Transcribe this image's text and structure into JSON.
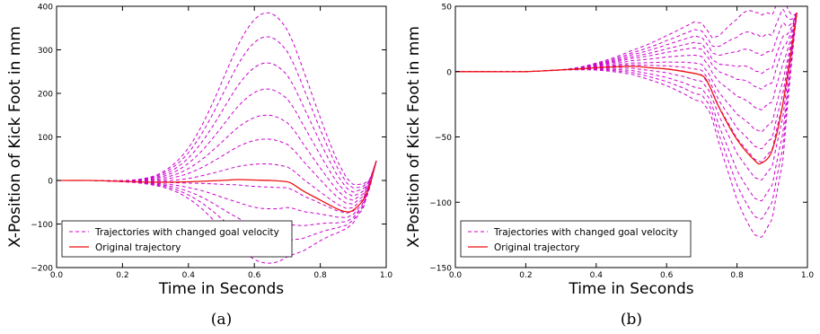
{
  "panels": [
    {
      "label": "(a)"
    },
    {
      "label": "(b)"
    }
  ],
  "colors": {
    "variants": "#cc00cc",
    "original": "#ee1111"
  },
  "chart_data": [
    {
      "type": "line",
      "xlabel": "Time in Seconds",
      "ylabel": "X-Position of Kick Foot in mm",
      "xlim": [
        0.0,
        1.0
      ],
      "ylim": [
        -200,
        400
      ],
      "xticks": [
        "0.0",
        "0.2",
        "0.4",
        "0.6",
        "0.8",
        "1.0"
      ],
      "yticks": [
        "400",
        "300",
        "200",
        "100",
        "0",
        "−100",
        "−200"
      ],
      "ytick_values": [
        400,
        300,
        200,
        100,
        0,
        -100,
        -200
      ],
      "legend": {
        "placement": "lower-left",
        "entries": [
          "Trajectories with changed goal velocity",
          "Original trajectory"
        ]
      },
      "original": {
        "x": [
          0.0,
          0.1,
          0.2,
          0.3,
          0.4,
          0.5,
          0.55,
          0.6,
          0.65,
          0.7,
          0.72,
          0.75,
          0.8,
          0.85,
          0.88,
          0.9,
          0.93,
          0.95,
          0.97
        ],
        "y": [
          0,
          0,
          -2,
          -4,
          -3,
          0,
          2,
          1,
          0,
          -3,
          -10,
          -25,
          -45,
          -65,
          -72,
          -68,
          -45,
          -10,
          45
        ]
      },
      "variant_peaks": [
        385,
        330,
        270,
        210,
        150,
        95,
        38,
        -15,
        -65,
        -110,
        -150,
        -190
      ]
    },
    {
      "type": "line",
      "xlabel": "Time in Seconds",
      "ylabel": "X-Position of Kick Foot in mm",
      "xlim": [
        0.0,
        1.0
      ],
      "ylim": [
        -150,
        50
      ],
      "xticks": [
        "0.0",
        "0.2",
        "0.4",
        "0.6",
        "0.8",
        "1.0"
      ],
      "yticks": [
        "50",
        "0",
        "−50",
        "−100",
        "−150"
      ],
      "ytick_values": [
        50,
        0,
        -50,
        -100,
        -150
      ],
      "legend": {
        "placement": "lower-left",
        "entries": [
          "Trajectories with changed goal velocity",
          "Original trajectory"
        ]
      },
      "original": {
        "x": [
          0.0,
          0.1,
          0.2,
          0.28,
          0.35,
          0.4,
          0.5,
          0.55,
          0.6,
          0.65,
          0.7,
          0.72,
          0.75,
          0.8,
          0.85,
          0.87,
          0.9,
          0.93,
          0.97
        ],
        "y": [
          0,
          0,
          0,
          1,
          2,
          3,
          4,
          3,
          2,
          0,
          -3,
          -10,
          -28,
          -52,
          -68,
          -70,
          -60,
          -25,
          45
        ]
      },
      "variant_dips": [
        45,
        28,
        14,
        0,
        -12,
        -28,
        -45,
        -58,
        -68,
        -82,
        -98,
        -112,
        -126
      ]
    }
  ]
}
